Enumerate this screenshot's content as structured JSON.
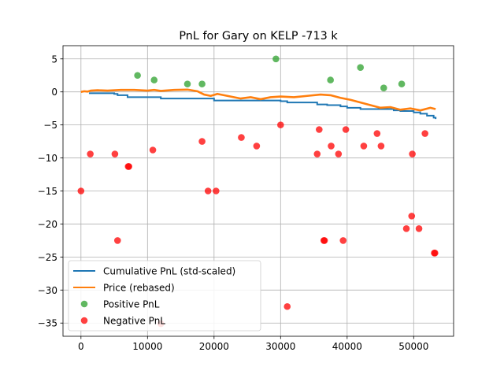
{
  "chart_data": {
    "type": "scatter",
    "title": "PnL for Gary on KELP -713 k",
    "xlabel": "",
    "ylabel": "",
    "xlim": [
      -2700,
      56000
    ],
    "ylim": [
      -37,
      7
    ],
    "xticks": [
      0,
      10000,
      20000,
      30000,
      40000,
      50000
    ],
    "xtick_labels": [
      "0",
      "10000",
      "20000",
      "30000",
      "40000",
      "50000"
    ],
    "yticks": [
      5,
      0,
      -5,
      -10,
      -15,
      -20,
      -25,
      -30,
      -35
    ],
    "ytick_labels": [
      "5",
      "0",
      "−5",
      "−10",
      "−15",
      "−20",
      "−25",
      "−30",
      "−35"
    ],
    "grid": true,
    "legend_position": "lower-left",
    "series": [
      {
        "name": "Cumulative PnL (std-scaled)",
        "kind": "step-line",
        "color": "#1f77b4",
        "points": [
          [
            1200,
            -0.2
          ],
          [
            5000,
            -0.3
          ],
          [
            5500,
            -0.5
          ],
          [
            7000,
            -0.8
          ],
          [
            10500,
            -0.8
          ],
          [
            12000,
            -1.0
          ],
          [
            18000,
            -1.0
          ],
          [
            20000,
            -1.3
          ],
          [
            30000,
            -1.4
          ],
          [
            31000,
            -1.6
          ],
          [
            35000,
            -1.6
          ],
          [
            35500,
            -1.9
          ],
          [
            37000,
            -2.0
          ],
          [
            39000,
            -2.2
          ],
          [
            40000,
            -2.4
          ],
          [
            42000,
            -2.6
          ],
          [
            45000,
            -2.6
          ],
          [
            47000,
            -2.8
          ],
          [
            48000,
            -2.9
          ],
          [
            50000,
            -3.1
          ],
          [
            51000,
            -3.3
          ],
          [
            52000,
            -3.6
          ],
          [
            53000,
            -3.9
          ],
          [
            53300,
            -4.1
          ]
        ]
      },
      {
        "name": "Price (rebased)",
        "kind": "line",
        "color": "#ff7f0e",
        "points": [
          [
            0,
            0
          ],
          [
            500,
            0.1
          ],
          [
            1000,
            0.05
          ],
          [
            1500,
            0.2
          ],
          [
            2500,
            0.25
          ],
          [
            4000,
            0.2
          ],
          [
            6000,
            0.3
          ],
          [
            8000,
            0.3
          ],
          [
            10000,
            0.2
          ],
          [
            11000,
            0.3
          ],
          [
            12000,
            0.15
          ],
          [
            14000,
            0.3
          ],
          [
            16000,
            0.35
          ],
          [
            17500,
            0.1
          ],
          [
            18500,
            -0.4
          ],
          [
            19500,
            -0.6
          ],
          [
            20500,
            -0.3
          ],
          [
            22000,
            -0.6
          ],
          [
            24000,
            -1.0
          ],
          [
            25500,
            -0.8
          ],
          [
            27000,
            -1.1
          ],
          [
            28500,
            -0.8
          ],
          [
            30000,
            -0.7
          ],
          [
            32000,
            -0.8
          ],
          [
            34000,
            -0.6
          ],
          [
            36000,
            -0.4
          ],
          [
            37500,
            -0.5
          ],
          [
            39000,
            -0.9
          ],
          [
            40500,
            -1.2
          ],
          [
            42000,
            -1.6
          ],
          [
            43500,
            -2.0
          ],
          [
            45000,
            -2.4
          ],
          [
            46500,
            -2.3
          ],
          [
            48000,
            -2.7
          ],
          [
            49500,
            -2.5
          ],
          [
            51000,
            -2.8
          ],
          [
            52500,
            -2.4
          ],
          [
            53300,
            -2.6
          ]
        ]
      },
      {
        "name": "Positive PnL",
        "kind": "scatter",
        "color": "#2ca02c",
        "points": [
          [
            8500,
            2.5
          ],
          [
            11000,
            1.8
          ],
          [
            16000,
            1.2
          ],
          [
            18200,
            1.2
          ],
          [
            29300,
            5.0
          ],
          [
            37500,
            1.8
          ],
          [
            42000,
            3.7
          ],
          [
            45500,
            0.6
          ],
          [
            48200,
            1.2
          ]
        ]
      },
      {
        "name": "Negative PnL",
        "kind": "scatter",
        "color": "#ff0000",
        "points": [
          [
            0,
            -15
          ],
          [
            1400,
            -9.4
          ],
          [
            5100,
            -9.4
          ],
          [
            5500,
            -22.5
          ],
          [
            7100,
            -11.3
          ],
          [
            7200,
            -11.3
          ],
          [
            10800,
            -8.8
          ],
          [
            12000,
            -35.1
          ],
          [
            18200,
            -7.5
          ],
          [
            19100,
            -15
          ],
          [
            20300,
            -15
          ],
          [
            24100,
            -6.9
          ],
          [
            26400,
            -8.2
          ],
          [
            30000,
            -5.0
          ],
          [
            31000,
            -32.5
          ],
          [
            35500,
            -9.4
          ],
          [
            35800,
            -5.7
          ],
          [
            36500,
            -22.5
          ],
          [
            36600,
            -22.5
          ],
          [
            37600,
            -8.2
          ],
          [
            38700,
            -9.4
          ],
          [
            39400,
            -22.5
          ],
          [
            39800,
            -5.7
          ],
          [
            42500,
            -8.2
          ],
          [
            44500,
            -6.3
          ],
          [
            45100,
            -8.2
          ],
          [
            48900,
            -20.7
          ],
          [
            49700,
            -18.8
          ],
          [
            49800,
            -9.4
          ],
          [
            50800,
            -20.7
          ],
          [
            51700,
            -6.3
          ],
          [
            53100,
            -24.4
          ],
          [
            53200,
            -24.4
          ]
        ]
      }
    ]
  }
}
